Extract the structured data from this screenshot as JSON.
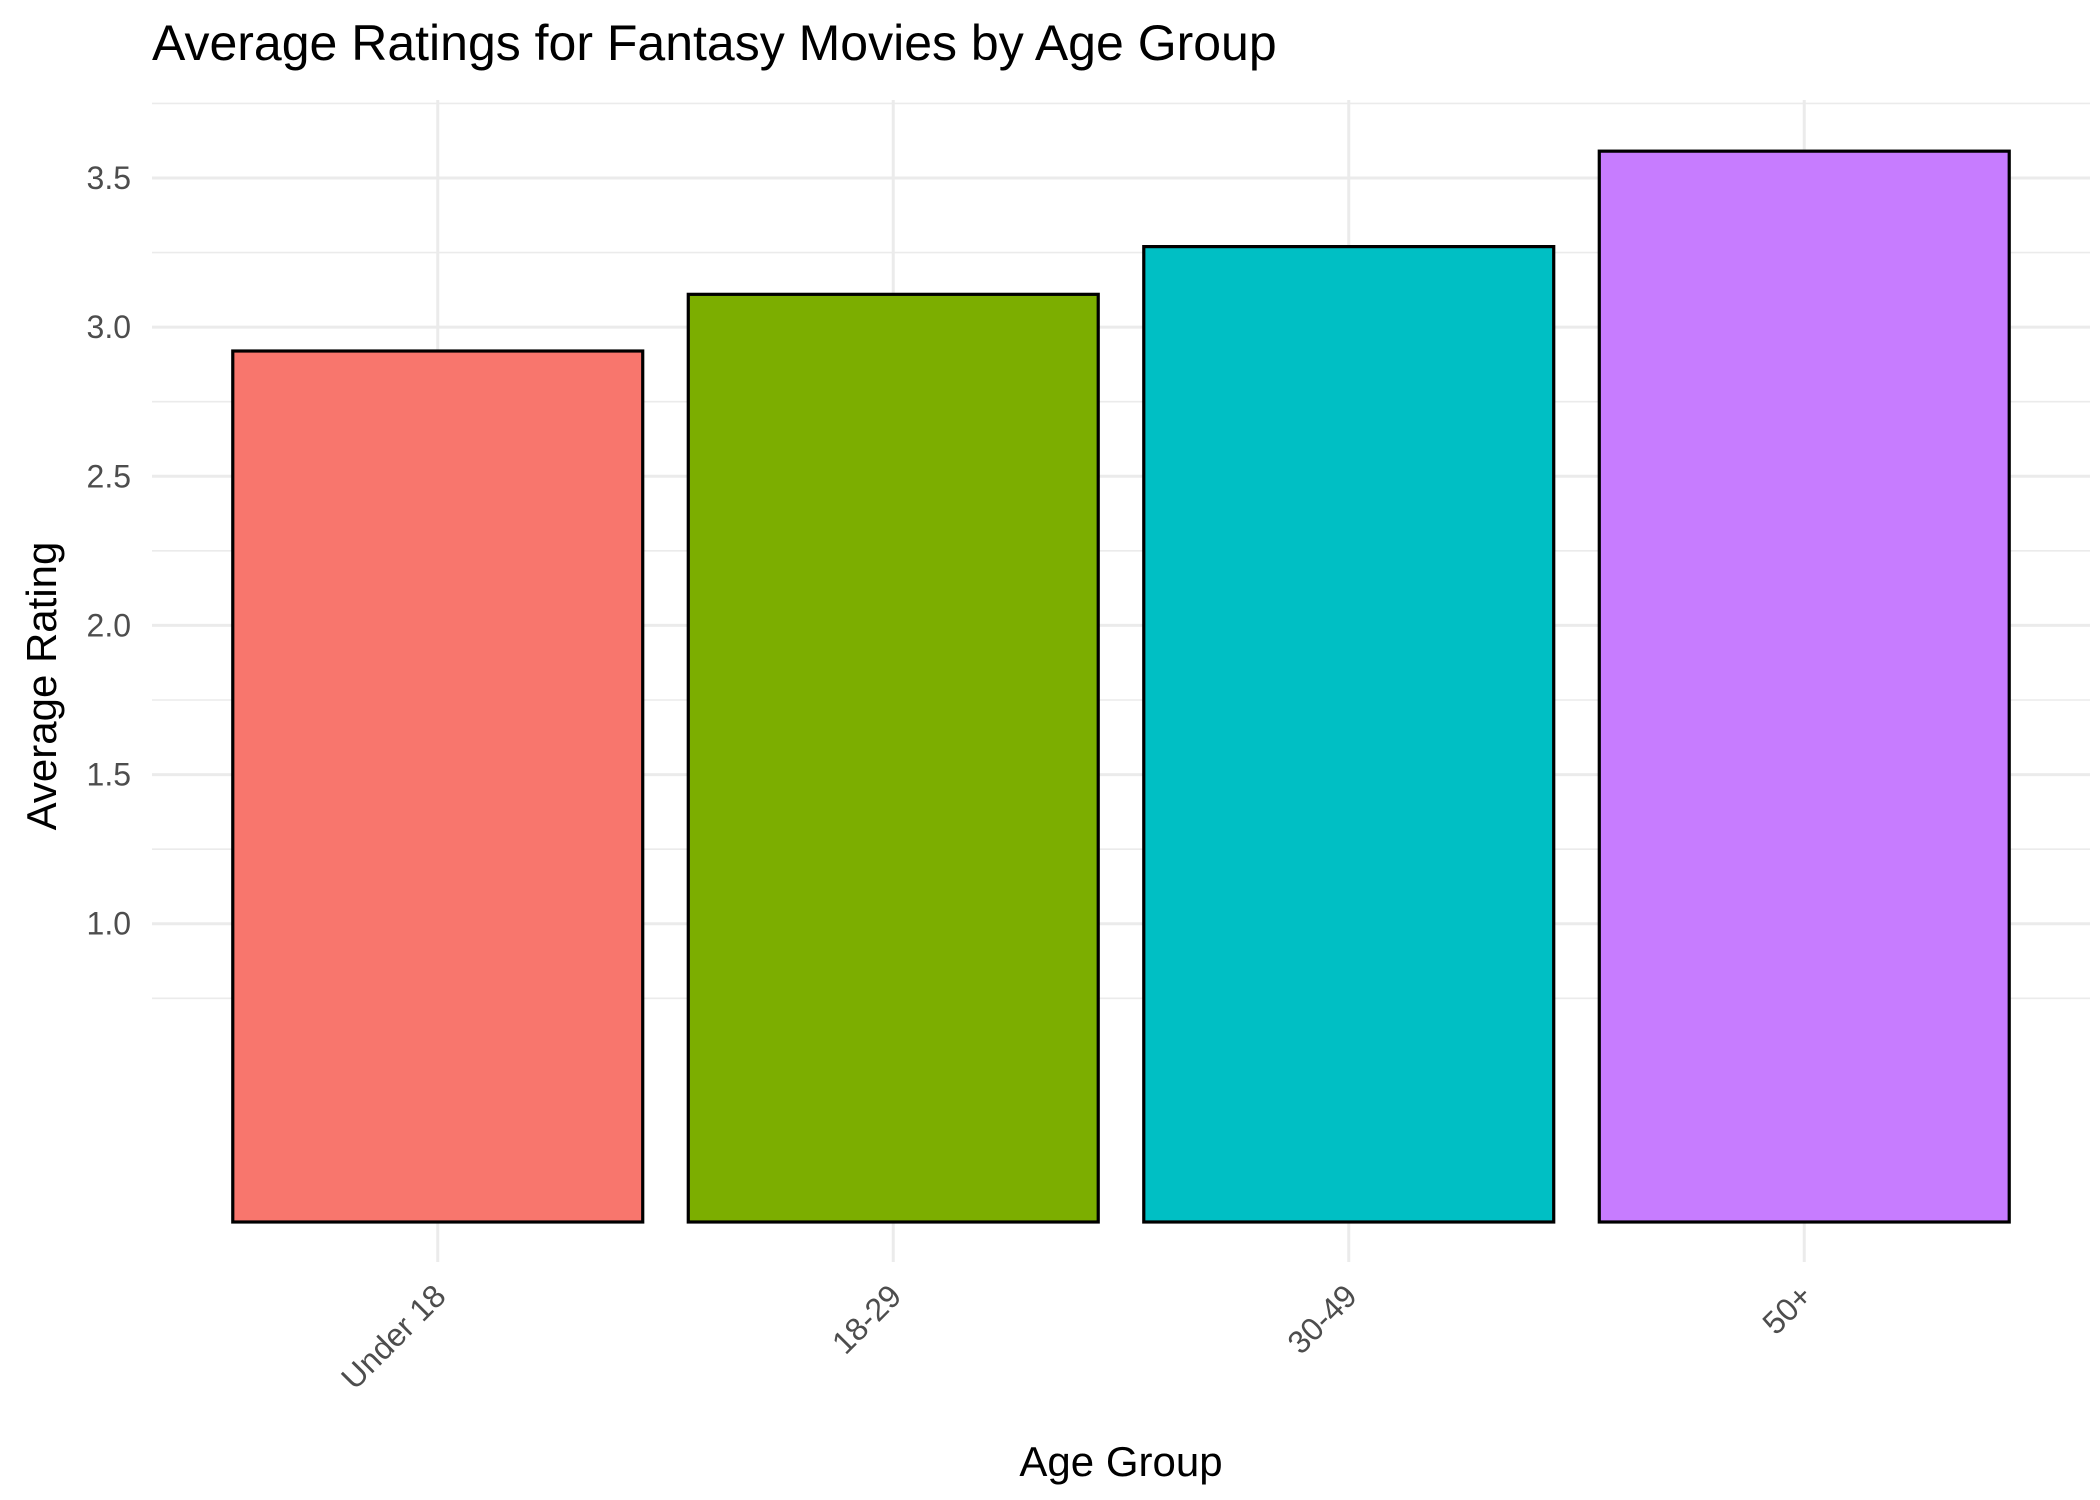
{
  "chart_data": {
    "type": "bar",
    "title": "Average Ratings for Fantasy Movies by Age Group",
    "xlabel": "Age Group",
    "ylabel": "Average Rating",
    "categories": [
      "Under 18",
      "18-29",
      "30-49",
      "50+"
    ],
    "values": [
      2.92,
      3.11,
      3.27,
      3.59
    ],
    "colors": [
      "#F8766D",
      "#7CAE00",
      "#00BFC4",
      "#C77CFF"
    ],
    "bar_outline": "#000000",
    "ylim": [
      0,
      3.7
    ],
    "y_ticks": [
      1.0,
      1.5,
      2.0,
      2.5,
      3.0,
      3.5
    ],
    "y_tick_labels": [
      "1.0",
      "1.5",
      "2.0",
      "2.5",
      "3.0",
      "3.5"
    ],
    "grid": true,
    "legend": "none"
  }
}
